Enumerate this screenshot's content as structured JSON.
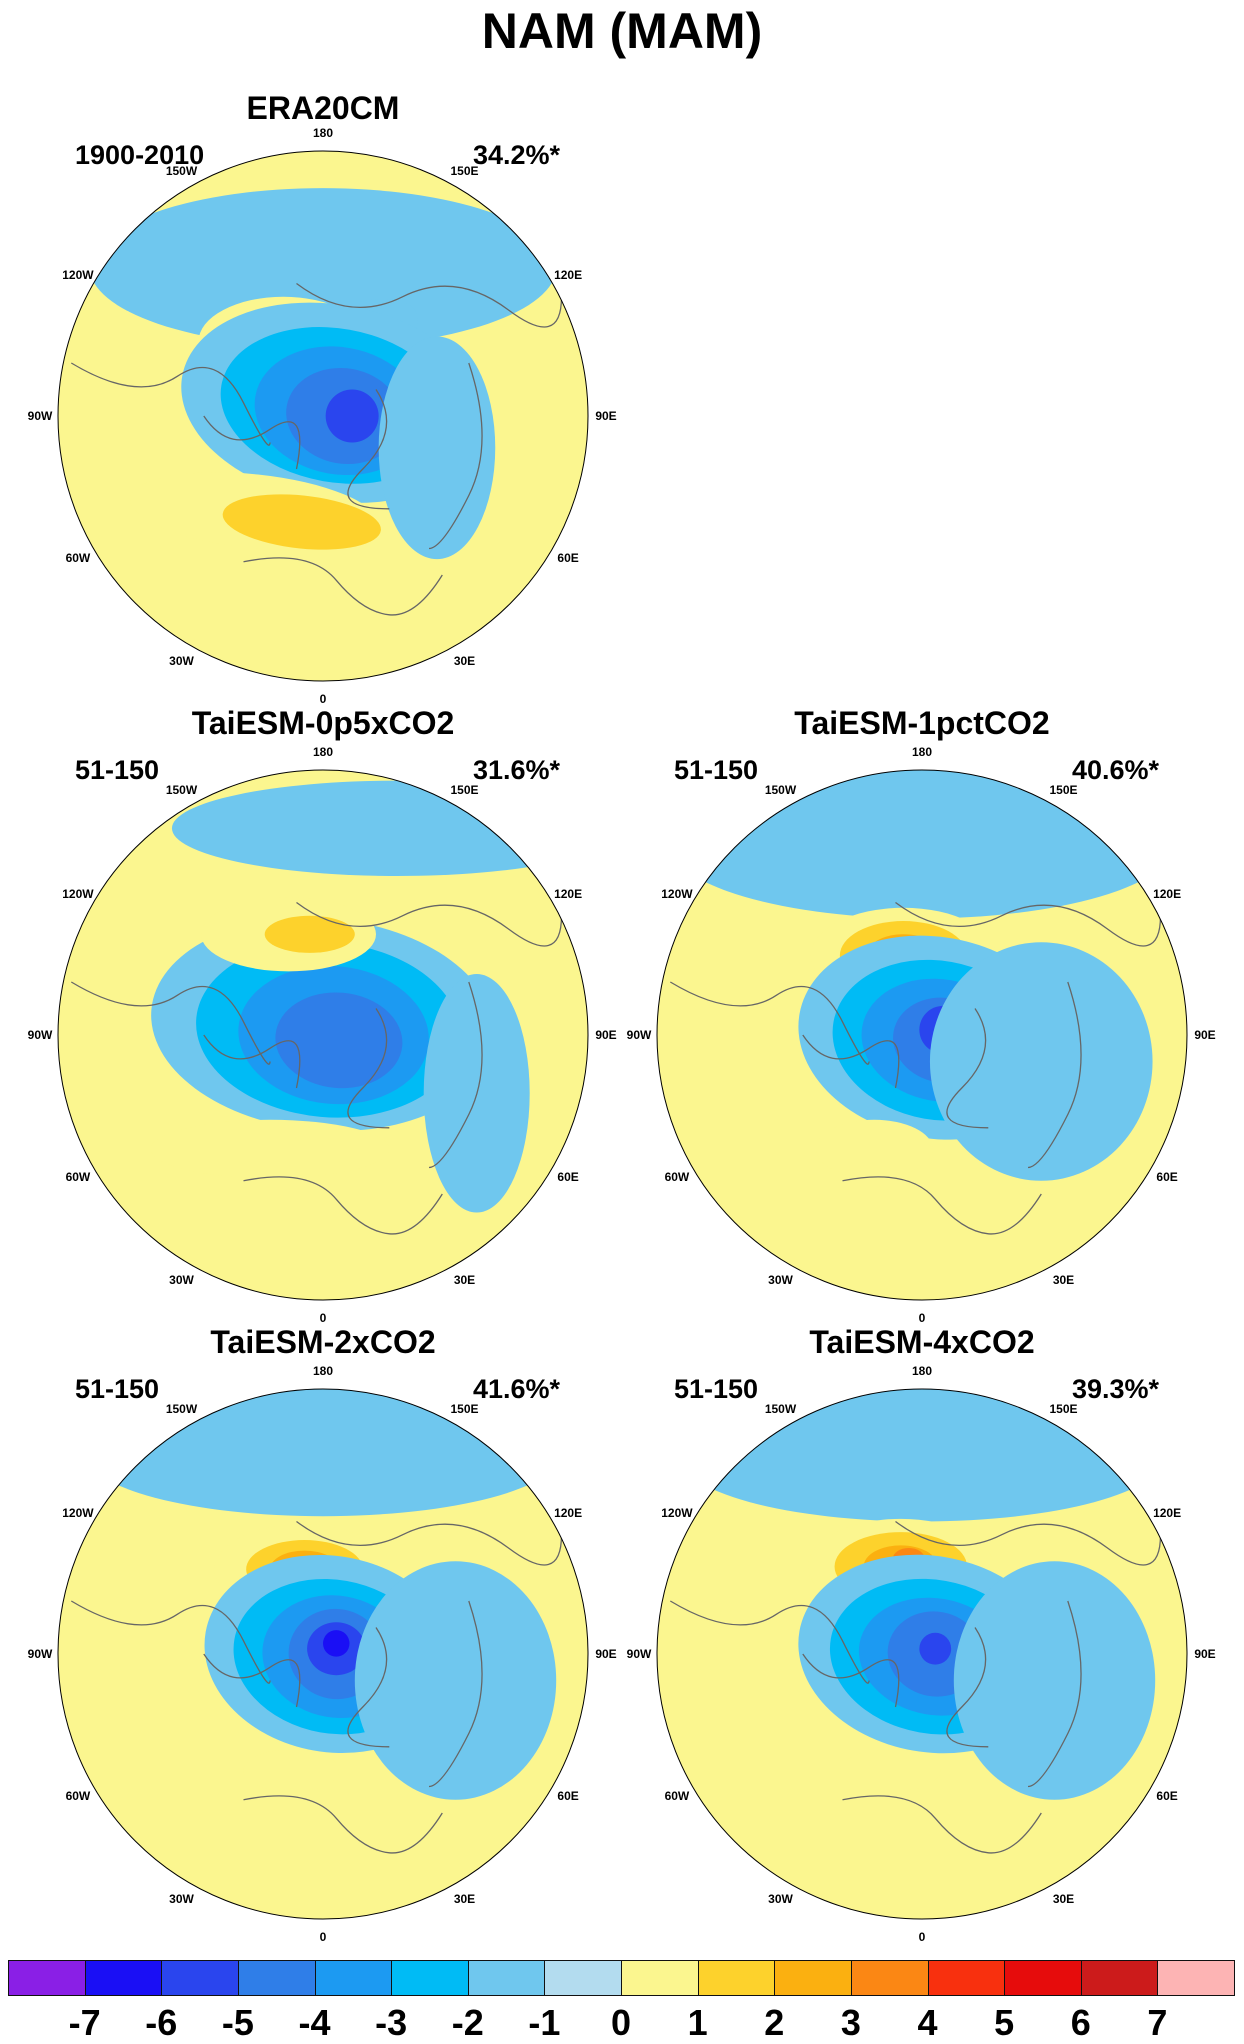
{
  "title": "NAM (MAM)",
  "panels": [
    {
      "id": "era20cm",
      "title": "ERA20CM",
      "period": "1900-2010",
      "variance": "34.2%*"
    },
    {
      "id": "taiesm-0p5xco2",
      "title": "TaiESM-0p5xCO2",
      "period": "51-150",
      "variance": "31.6%*"
    },
    {
      "id": "taiesm-1pctco2",
      "title": "TaiESM-1pctCO2",
      "period": "51-150",
      "variance": "40.6%*"
    },
    {
      "id": "taiesm-2xco2",
      "title": "TaiESM-2xCO2",
      "period": "51-150",
      "variance": "41.6%*"
    },
    {
      "id": "taiesm-4xco2",
      "title": "TaiESM-4xCO2",
      "period": "51-150",
      "variance": "39.3%*"
    }
  ],
  "longitude_labels": [
    "180",
    "150E",
    "120E",
    "90E",
    "60E",
    "30E",
    "0",
    "30W",
    "60W",
    "90W",
    "120W",
    "150W"
  ],
  "colorbar": {
    "labels": [
      "-7",
      "-6",
      "-5",
      "-4",
      "-3",
      "-2",
      "-1",
      "0",
      "1",
      "2",
      "3",
      "4",
      "5",
      "6",
      "7"
    ],
    "colors": [
      "#8a1fe6",
      "#1a0ff5",
      "#2a45ee",
      "#2f7ee8",
      "#1c9af2",
      "#00bbf5",
      "#6fc7ee",
      "#b3dcef",
      "#fbf68f",
      "#fdd22c",
      "#fbb010",
      "#fb8714",
      "#f8300e",
      "#e60c0c",
      "#cc1b1b",
      "#fdb4b4"
    ]
  }
}
